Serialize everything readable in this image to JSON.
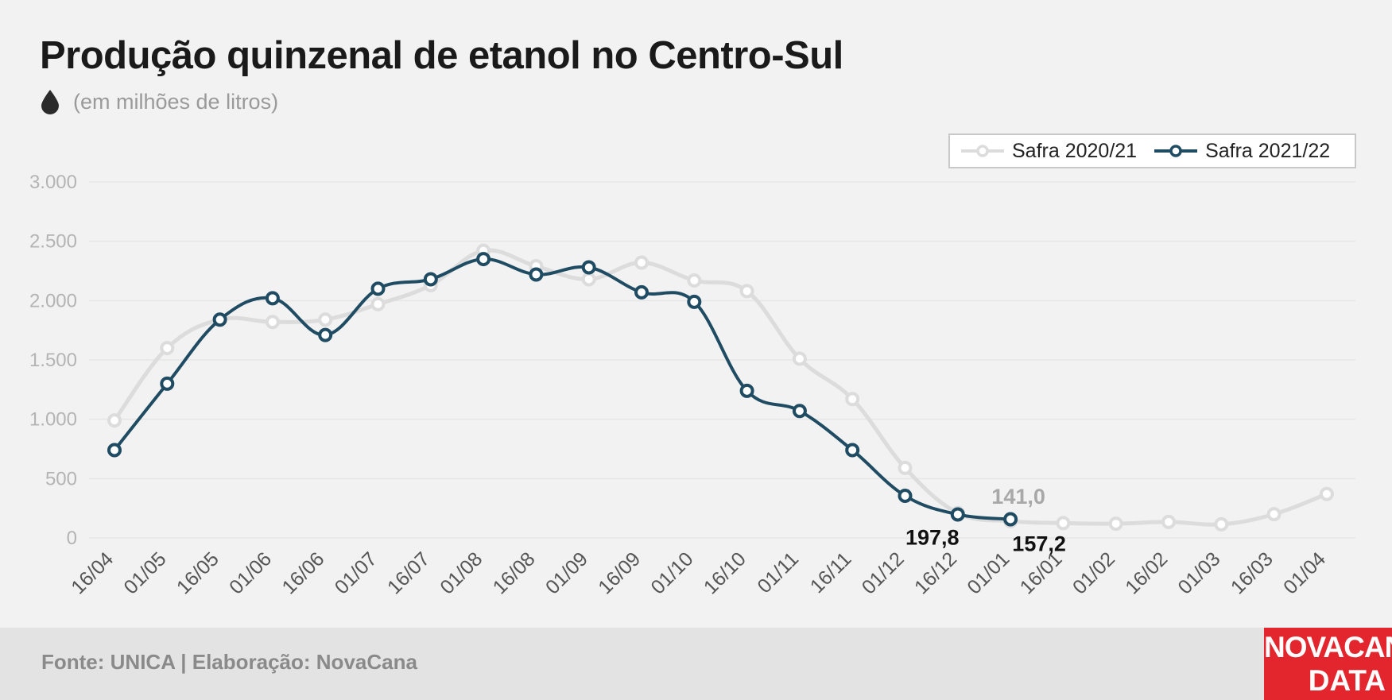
{
  "header": {
    "title": "Produção quinzenal de etanol no Centro-Sul",
    "subtitle": "(em milhões de litros)",
    "icon": "drop-icon"
  },
  "legend": {
    "items": [
      "Safra 2020/21",
      "Safra 2021/22"
    ]
  },
  "footer": {
    "source": "Fonte: UNICA | Elaboração: NovaCana",
    "logo_line1": "NOVACANA",
    "logo_line2": "DATA"
  },
  "colors": {
    "series1": "#dcdcdc",
    "series2": "#1f4b63",
    "axis_text": "#b4b4b4",
    "tick_text": "#555555",
    "grid": "#e6e6e6",
    "label_dark": "#111111",
    "label_grey": "#a8a8a8",
    "logo": "#e3262e"
  },
  "chart_data": {
    "type": "line",
    "title": "Produção quinzenal de etanol no Centro-Sul",
    "subtitle": "(em milhões de litros)",
    "xlabel": "",
    "ylabel": "",
    "ylim": [
      0,
      3000
    ],
    "yticks": [
      0,
      500,
      1000,
      1500,
      2000,
      2500,
      3000
    ],
    "ytick_labels": [
      "0",
      "500",
      "1.000",
      "1.500",
      "2.000",
      "2.500",
      "3.000"
    ],
    "grid": true,
    "legend_position": "top-right",
    "categories": [
      "16/04",
      "01/05",
      "16/05",
      "01/06",
      "16/06",
      "01/07",
      "16/07",
      "01/08",
      "16/08",
      "01/09",
      "16/09",
      "01/10",
      "16/10",
      "01/11",
      "16/11",
      "01/12",
      "16/12",
      "01/01",
      "16/01",
      "01/02",
      "16/02",
      "01/03",
      "16/03",
      "01/04"
    ],
    "series": [
      {
        "name": "Safra 2020/21",
        "values": [
          990,
          1600,
          1840,
          1820,
          1840,
          1970,
          2130,
          2420,
          2290,
          2180,
          2320,
          2170,
          2080,
          1510,
          1170,
          590,
          210,
          141.0,
          125,
          120,
          135,
          115,
          200,
          370
        ]
      },
      {
        "name": "Safra 2021/22",
        "values": [
          740,
          1300,
          1840,
          2020,
          1710,
          2100,
          2180,
          2350,
          2220,
          2280,
          2070,
          1990,
          1240,
          1070,
          740,
          355,
          197.8,
          157.2,
          null,
          null,
          null,
          null,
          null,
          null
        ]
      }
    ],
    "annotations": [
      {
        "text": "141,0",
        "series": "Safra 2020/21",
        "category": "01/01"
      },
      {
        "text": "197,8",
        "series": "Safra 2021/22",
        "category": "16/12"
      },
      {
        "text": "157,2",
        "series": "Safra 2021/22",
        "category": "01/01"
      }
    ]
  }
}
